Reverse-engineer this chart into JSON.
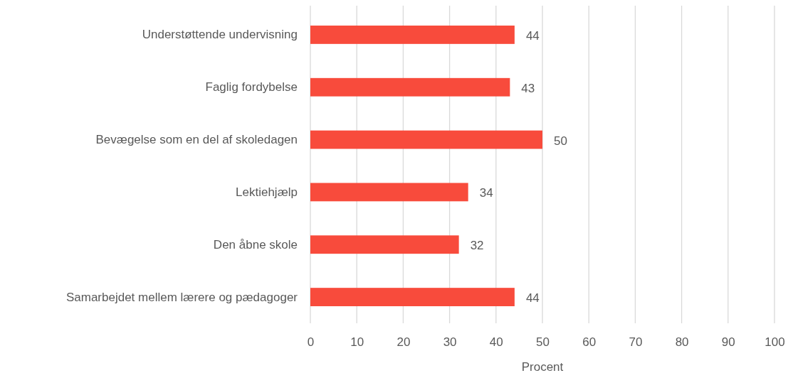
{
  "chart_data": {
    "type": "bar",
    "orientation": "horizontal",
    "xlabel": "Procent",
    "categories": [
      "Understøttende undervisning",
      "Faglig fordybelse",
      "Bevægelse som en del af skoledagen",
      "Lektiehjælp",
      "Den åbne skole",
      "Samarbejdet mellem lærere og pædagoger"
    ],
    "values": [
      44,
      43,
      50,
      34,
      32,
      44
    ],
    "color": "#f84b3c",
    "data_labels": true,
    "xlim": [
      0,
      100
    ],
    "xticks": [
      0,
      10,
      20,
      30,
      40,
      50,
      60,
      70,
      80,
      90,
      100
    ],
    "grid": "x"
  }
}
